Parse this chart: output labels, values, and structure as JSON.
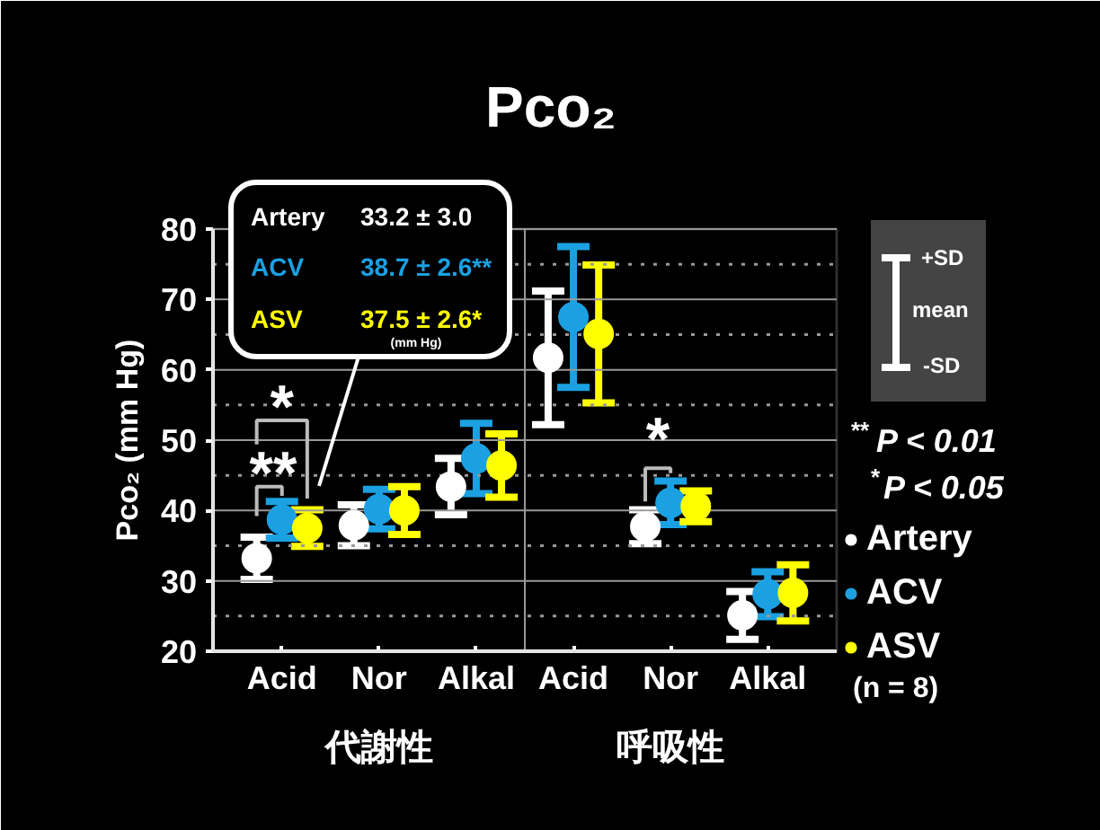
{
  "chart_data": {
    "type": "scatter",
    "title": "Pco₂",
    "ylabel": "Pco₂ (mm Hg)",
    "categories": [
      "Acid",
      "Nor",
      "Alkal",
      "Acid",
      "Nor",
      "Alkal"
    ],
    "series": [
      {
        "name": "Artery",
        "color": "#ffffff",
        "values": [
          33.2,
          37.9,
          43.4,
          61.7,
          37.7,
          25.1
        ],
        "errors": [
          3.0,
          2.9,
          4.0,
          9.5,
          2.4,
          3.4
        ]
      },
      {
        "name": "ACV",
        "color": "#1ba1e2",
        "values": [
          38.7,
          40.2,
          47.4,
          67.5,
          41.1,
          28.1
        ],
        "errors": [
          2.6,
          2.8,
          5.0,
          10.0,
          3.1,
          3.2
        ]
      },
      {
        "name": "ASV",
        "color": "#ffff00",
        "values": [
          37.5,
          40.0,
          46.4,
          65.1,
          40.6,
          28.3
        ],
        "errors": [
          2.6,
          3.4,
          4.5,
          9.8,
          2.2,
          4.0
        ]
      }
    ],
    "ylim": [
      20,
      80
    ],
    "yticks": [
      20,
      30,
      40,
      50,
      60,
      70,
      80
    ],
    "grid": "y",
    "legend": "bottom right",
    "marker": "circle",
    "annotations": [
      "Artery",
      "33.2 ± 3.0",
      "ACV",
      "38.7 ± 2.6**",
      "ASV",
      "37.5 ± 2.6*",
      "(mm Hg)",
      "**",
      "*",
      "*",
      "+SD",
      "mean",
      "-SD",
      "$^{**}$P < 0.01",
      "$^{*}$P < 0.05",
      "(n = 8)",
      "代謝性",
      "呼吸性"
    ]
  }
}
